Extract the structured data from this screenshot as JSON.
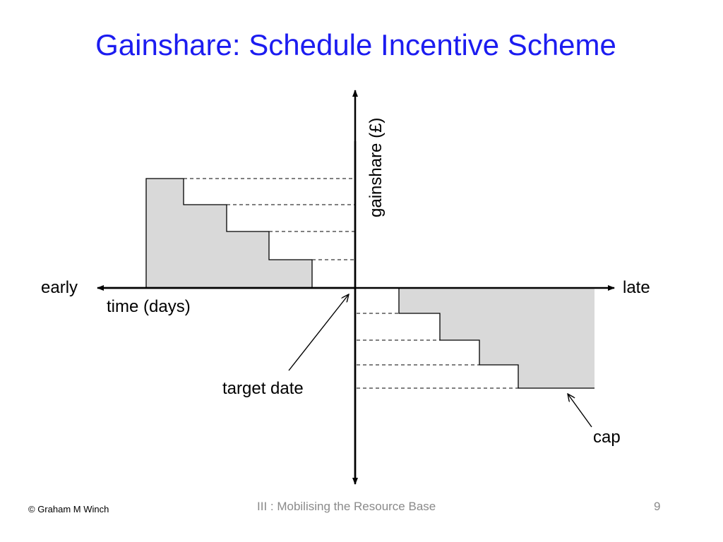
{
  "slide": {
    "title": "Gainshare: Schedule Incentive Scheme",
    "footer_left": "© Graham M Winch",
    "footer_center": "III : Mobilising the Resource Base",
    "page_number": "9"
  },
  "diagram": {
    "y_axis_label": "gainshare (£)",
    "x_left_label": "early",
    "x_right_label": "late",
    "x_axis_label": "time (days)",
    "annotation_target": "target date",
    "annotation_cap": "cap",
    "fill_color": "#d9d9d9"
  }
}
